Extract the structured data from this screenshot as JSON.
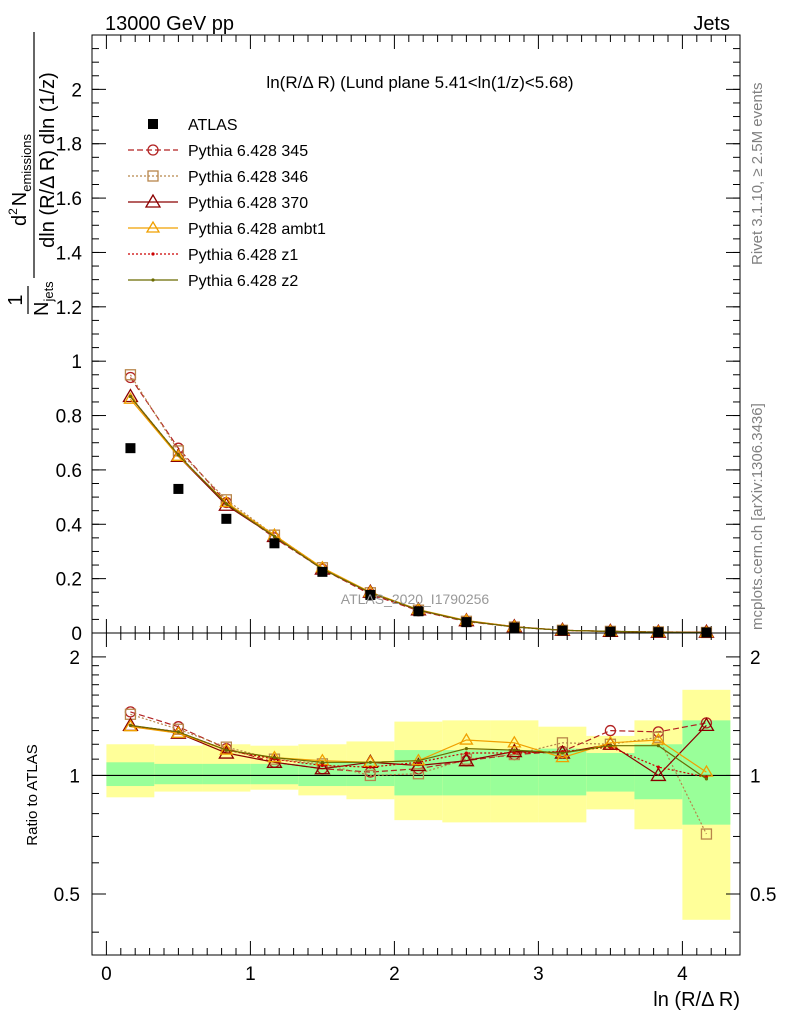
{
  "header": {
    "left": "13000 GeV pp",
    "right": "Jets"
  },
  "side_labels": {
    "rivet": "Rivet 3.1.10, ≥ 2.5M events",
    "mcplots": "mcplots.cern.ch [arXiv:1306.3436]"
  },
  "watermark": "ATLAS_2020_I1790256",
  "colors": {
    "atlas": "#000000",
    "p345": "#b22222",
    "p346": "#b8864b",
    "p370": "#8b0000",
    "ambt1": "#f0a000",
    "z1": "#cc0000",
    "z2": "#6b6b00",
    "band_inner": "#99ff99",
    "band_outer": "#ffff99"
  },
  "chart_data": [
    {
      "type": "scatter",
      "name": "main",
      "title": "ln(R/Δ R) (Lund plane 5.41<ln(1/z)<5.68)",
      "ylabel": {
        "frac_num": "1",
        "frac_den_prefix": "N",
        "frac_den_sub": "jets",
        "d": "d",
        "sup": "2",
        "N": "N",
        "sub": "emissions",
        "den": "dln (R/Δ R) dln (1/z)"
      },
      "xlim": [
        -0.1,
        4.4
      ],
      "ylim": [
        0,
        2.2
      ],
      "yticks": [
        0,
        0.2,
        0.4,
        0.6,
        0.8,
        1,
        1.2,
        1.4,
        1.6,
        1.8,
        2
      ],
      "ytick_labels": [
        "0",
        "0.2",
        "0.4",
        "0.6",
        "0.8",
        "1",
        "1.2",
        "1.4",
        "1.6",
        "1.8",
        "2"
      ],
      "x": [
        0.167,
        0.5,
        0.833,
        1.167,
        1.5,
        1.833,
        2.167,
        2.5,
        2.833,
        3.167,
        3.5,
        3.833,
        4.167
      ],
      "legend": [
        "ATLAS",
        "Pythia 6.428 345",
        "Pythia 6.428 346",
        "Pythia 6.428 370",
        "Pythia 6.428 ambt1",
        "Pythia 6.428 z1",
        "Pythia 6.428 z2"
      ],
      "series": [
        {
          "name": "ATLAS",
          "values": [
            0.68,
            0.53,
            0.42,
            0.33,
            0.225,
            0.14,
            0.08,
            0.04,
            0.02,
            0.009,
            0.005,
            0.003,
            0.002
          ]
        },
        {
          "name": "Pythia 6.428 345",
          "values": [
            0.94,
            0.68,
            0.48,
            0.35,
            0.235,
            0.142,
            0.082,
            0.042,
            0.022,
            0.01,
            0.006,
            0.004,
            0.003
          ]
        },
        {
          "name": "Pythia 6.428 346",
          "values": [
            0.95,
            0.67,
            0.49,
            0.36,
            0.24,
            0.148,
            0.084,
            0.043,
            0.022,
            0.01,
            0.006,
            0.004,
            0.002
          ]
        },
        {
          "name": "Pythia 6.428 370",
          "values": [
            0.87,
            0.65,
            0.47,
            0.355,
            0.235,
            0.15,
            0.085,
            0.045,
            0.023,
            0.01,
            0.006,
            0.003,
            0.003
          ]
        },
        {
          "name": "Pythia 6.428 ambt1",
          "values": [
            0.86,
            0.65,
            0.48,
            0.36,
            0.24,
            0.15,
            0.086,
            0.046,
            0.023,
            0.01,
            0.006,
            0.003,
            0.002
          ]
        },
        {
          "name": "Pythia 6.428 z1",
          "values": [
            0.87,
            0.655,
            0.475,
            0.355,
            0.235,
            0.146,
            0.084,
            0.044,
            0.022,
            0.01,
            0.006,
            0.003,
            0.002
          ]
        },
        {
          "name": "Pythia 6.428 z2",
          "values": [
            0.87,
            0.655,
            0.475,
            0.355,
            0.235,
            0.148,
            0.085,
            0.044,
            0.022,
            0.01,
            0.006,
            0.003,
            0.002
          ]
        }
      ]
    },
    {
      "type": "line",
      "name": "ratio",
      "ylabel": "Ratio to ATLAS",
      "xlabel": "ln (R/Δ R)",
      "xlim": [
        -0.1,
        4.4
      ],
      "ylim": [
        0.35,
        2.3
      ],
      "ylog": true,
      "xticks": [
        0,
        1,
        2,
        3,
        4
      ],
      "xtick_labels": [
        "0",
        "1",
        "2",
        "3",
        "4"
      ],
      "yticks": [
        0.5,
        1,
        2
      ],
      "ytick_labels": [
        "0.5",
        "1",
        "2"
      ],
      "x": [
        0.167,
        0.5,
        0.833,
        1.167,
        1.5,
        1.833,
        2.167,
        2.5,
        2.833,
        3.167,
        3.5,
        3.833,
        4.167
      ],
      "bins": [
        [
          0,
          0.333
        ],
        [
          0.333,
          0.667
        ],
        [
          0.667,
          1.0
        ],
        [
          1.0,
          1.333
        ],
        [
          1.333,
          1.667
        ],
        [
          1.667,
          2.0
        ],
        [
          2.0,
          2.333
        ],
        [
          2.333,
          2.667
        ],
        [
          2.667,
          3.0
        ],
        [
          3.0,
          3.333
        ],
        [
          3.333,
          3.667
        ],
        [
          3.667,
          4.0
        ],
        [
          4.0,
          4.333
        ]
      ],
      "band_inner": [
        [
          0.94,
          1.08
        ],
        [
          0.95,
          1.07
        ],
        [
          0.95,
          1.07
        ],
        [
          0.95,
          1.07
        ],
        [
          0.94,
          1.08
        ],
        [
          0.94,
          1.08
        ],
        [
          0.89,
          1.16
        ],
        [
          0.89,
          1.16
        ],
        [
          0.89,
          1.16
        ],
        [
          0.89,
          1.17
        ],
        [
          0.91,
          1.14
        ],
        [
          0.87,
          1.2
        ],
        [
          0.75,
          1.38
        ]
      ],
      "band_outer": [
        [
          0.88,
          1.2
        ],
        [
          0.91,
          1.19
        ],
        [
          0.91,
          1.2
        ],
        [
          0.92,
          1.19
        ],
        [
          0.89,
          1.2
        ],
        [
          0.87,
          1.22
        ],
        [
          0.77,
          1.37
        ],
        [
          0.76,
          1.38
        ],
        [
          0.76,
          1.38
        ],
        [
          0.76,
          1.33
        ],
        [
          0.82,
          1.26
        ],
        [
          0.73,
          1.38
        ],
        [
          0.43,
          1.65
        ]
      ],
      "series": [
        {
          "name": "Pythia 6.428 345",
          "values": [
            1.45,
            1.33,
            1.17,
            1.08,
            1.04,
            1.02,
            1.04,
            1.09,
            1.13,
            1.15,
            1.3,
            1.29,
            1.36
          ]
        },
        {
          "name": "Pythia 6.428 346",
          "values": [
            1.43,
            1.31,
            1.18,
            1.1,
            1.07,
            1.0,
            1.01,
            1.1,
            1.13,
            1.21,
            1.2,
            1.25,
            0.71
          ]
        },
        {
          "name": "Pythia 6.428 370",
          "values": [
            1.34,
            1.28,
            1.14,
            1.08,
            1.04,
            1.08,
            1.06,
            1.09,
            1.15,
            1.14,
            1.2,
            1.0,
            1.34
          ]
        },
        {
          "name": "Pythia 6.428 ambt1",
          "values": [
            1.33,
            1.28,
            1.16,
            1.11,
            1.09,
            1.08,
            1.09,
            1.23,
            1.21,
            1.11,
            1.21,
            1.23,
            1.02
          ]
        },
        {
          "name": "Pythia 6.428 z1",
          "values": [
            1.34,
            1.29,
            1.16,
            1.1,
            1.06,
            1.05,
            1.08,
            1.14,
            1.14,
            1.15,
            1.18,
            1.05,
            0.99
          ]
        },
        {
          "name": "Pythia 6.428 z2",
          "values": [
            1.34,
            1.29,
            1.16,
            1.11,
            1.08,
            1.08,
            1.09,
            1.17,
            1.16,
            1.14,
            1.19,
            1.19,
            0.98
          ]
        }
      ]
    }
  ]
}
